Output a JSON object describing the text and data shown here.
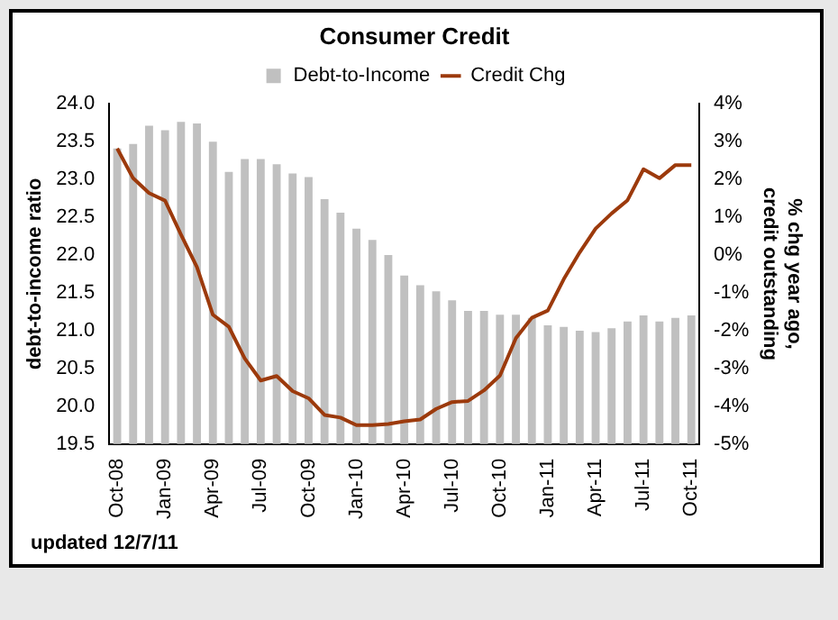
{
  "chart_data": {
    "type": "bar",
    "title": "Consumer Credit",
    "ylabel": "debt-to-income ratio",
    "y2label": "% chg year ago, credit outstanding",
    "annotations": [
      "updated 12/7/11"
    ],
    "categories": [
      "Oct-08",
      null,
      null,
      "Jan-09",
      null,
      null,
      "Apr-09",
      null,
      null,
      "Jul-09",
      null,
      null,
      "Oct-09",
      null,
      null,
      "Jan-10",
      null,
      null,
      "Apr-10",
      null,
      null,
      "Jul-10",
      null,
      null,
      "Oct-10",
      null,
      null,
      "Jan-11",
      null,
      null,
      "Apr-11",
      null,
      null,
      "Jul-11",
      null,
      null,
      "Oct-11"
    ],
    "series": [
      {
        "name": "Debt-to-Income",
        "color": "#c0c0c0",
        "values": [
          23.41,
          23.47,
          23.71,
          23.65,
          23.76,
          23.74,
          23.5,
          23.1,
          23.27,
          23.27,
          23.2,
          23.08,
          23.03,
          22.74,
          22.56,
          22.35,
          22.2,
          22.0,
          21.73,
          21.6,
          21.52,
          21.4,
          21.26,
          21.26,
          21.21,
          21.21,
          21.17,
          21.07,
          21.05,
          21.0,
          20.98,
          21.03,
          21.12,
          21.2,
          21.12,
          21.17,
          21.2
        ]
      },
      {
        "name": "Credit Chg",
        "type": "line",
        "axis": "y2",
        "color": "#9c3a0c",
        "values": [
          2.82,
          2.03,
          1.64,
          1.44,
          0.54,
          -0.32,
          -1.58,
          -1.9,
          -2.74,
          -3.32,
          -3.2,
          -3.6,
          -3.79,
          -4.23,
          -4.3,
          -4.5,
          -4.5,
          -4.47,
          -4.4,
          -4.35,
          -4.07,
          -3.89,
          -3.86,
          -3.58,
          -3.19,
          -2.2,
          -1.66,
          -1.47,
          -0.64,
          0.07,
          0.7,
          1.1,
          1.45,
          2.27,
          2.03,
          2.38,
          2.38
        ]
      }
    ],
    "ylim": [
      19.5,
      24
    ],
    "yticks": [
      {
        "value": 19.5,
        "label": "19.5"
      },
      {
        "value": 20,
        "label": "20.0"
      },
      {
        "value": 20.5,
        "label": "20.5"
      },
      {
        "value": 21,
        "label": "21.0"
      },
      {
        "value": 21.5,
        "label": "21.5"
      },
      {
        "value": 22,
        "label": "22.0"
      },
      {
        "value": 22.5,
        "label": "22.5"
      },
      {
        "value": 23,
        "label": "23.0"
      },
      {
        "value": 23.5,
        "label": "23.5"
      },
      {
        "value": 24,
        "label": "24.0"
      }
    ],
    "y2lim": [
      -5,
      4
    ],
    "y2ticks": [
      {
        "value": -5,
        "label": "-5%"
      },
      {
        "value": -4,
        "label": "-4%"
      },
      {
        "value": -3,
        "label": "-3%"
      },
      {
        "value": -2,
        "label": "-2%"
      },
      {
        "value": -1,
        "label": "-1%"
      },
      {
        "value": 0,
        "label": "0%"
      },
      {
        "value": 1,
        "label": "1%"
      },
      {
        "value": 2,
        "label": "2%"
      },
      {
        "value": 3,
        "label": "3%"
      },
      {
        "value": 4,
        "label": "4%"
      }
    ],
    "grid": false,
    "legend": "top",
    "marker": "none",
    "line_style": "solid"
  }
}
